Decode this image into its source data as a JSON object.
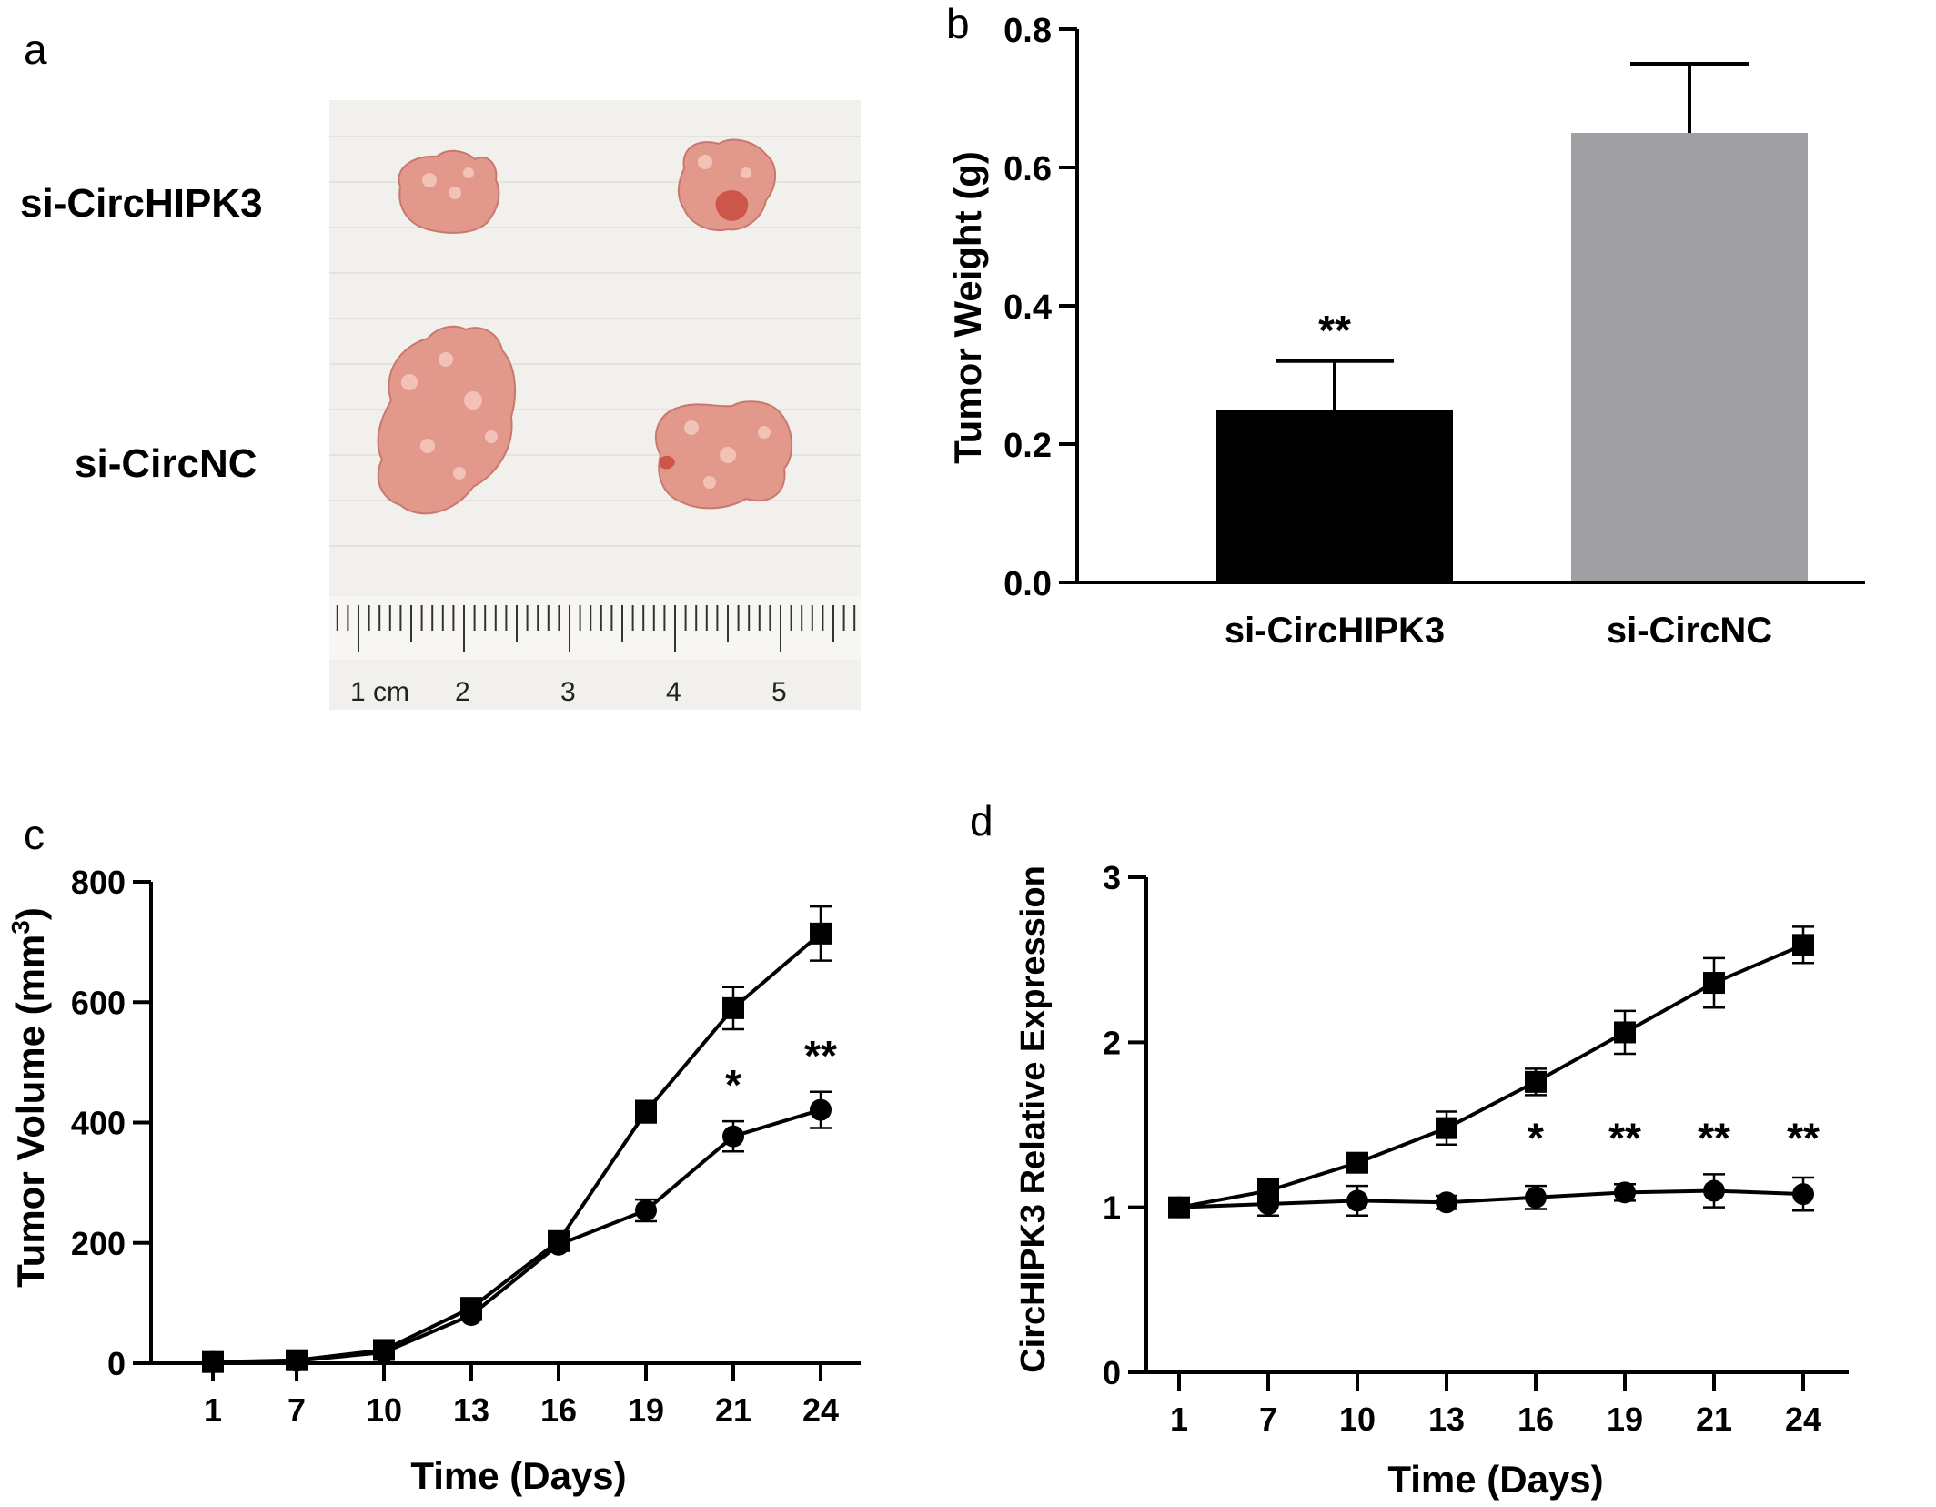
{
  "panel_labels": {
    "a": "a",
    "b": "b",
    "c": "c",
    "d": "d"
  },
  "photo": {
    "label_top": "si-CircHIPK3",
    "label_bottom": "si-CircNC",
    "ruler_labels": [
      "1 cm",
      "2",
      "3",
      "4",
      "5"
    ],
    "colors": {
      "background": "#f1f0ec",
      "tissue": "#e3988c",
      "tissue_highlight": "#f6c9bd",
      "tissue_dark": "#c84a3c"
    }
  },
  "chart_data": [
    {
      "panel": "b",
      "type": "bar",
      "categories": [
        "si-CircHIPK3",
        "si-CircNC"
      ],
      "values": [
        0.25,
        0.65
      ],
      "errors": [
        0.07,
        0.1
      ],
      "colors": [
        "#000000",
        "#a0a0a4"
      ],
      "annotations": [
        "**",
        ""
      ],
      "ylabel": "Tumor Weight (g)",
      "ylim": [
        0,
        0.8
      ],
      "yticks": [
        "0.0",
        "0.2",
        "0.4",
        "0.6",
        "0.8"
      ]
    },
    {
      "panel": "c",
      "type": "line",
      "xlabel": "Time (Days)",
      "ylabel": "Tumor Volume (mm³)",
      "ylabel_main": "Tumor Volume (mm",
      "ylabel_sup": "3",
      "ylabel_end": ")",
      "x": [
        1,
        7,
        10,
        13,
        16,
        19,
        21,
        24
      ],
      "xticks": [
        "1",
        "7",
        "10",
        "13",
        "16",
        "19",
        "21",
        "24"
      ],
      "ylim": [
        0,
        800
      ],
      "yticks": [
        "0",
        "200",
        "400",
        "600",
        "800"
      ],
      "series": [
        {
          "marker": "square",
          "values": [
            2,
            5,
            22,
            92,
            203,
            418,
            590,
            714
          ],
          "errors": [
            4,
            5,
            6,
            8,
            10,
            18,
            35,
            45
          ]
        },
        {
          "marker": "circle",
          "values": [
            2,
            4,
            18,
            80,
            197,
            254,
            377,
            421
          ],
          "errors": [
            4,
            5,
            6,
            8,
            10,
            18,
            25,
            30
          ]
        }
      ],
      "annotations": [
        {
          "x": 21,
          "text": "*"
        },
        {
          "x": 24,
          "text": "**"
        }
      ]
    },
    {
      "panel": "d",
      "type": "line",
      "xlabel": "Time (Days)",
      "ylabel": "CircHIPK3 Relative Expression",
      "x": [
        1,
        7,
        10,
        13,
        16,
        19,
        21,
        24
      ],
      "xticks": [
        "1",
        "7",
        "10",
        "13",
        "16",
        "19",
        "21",
        "24"
      ],
      "ylim": [
        0,
        3
      ],
      "yticks": [
        "0",
        "1",
        "2",
        "3"
      ],
      "series": [
        {
          "marker": "square",
          "values": [
            1.0,
            1.1,
            1.27,
            1.48,
            1.76,
            2.06,
            2.36,
            2.59
          ],
          "errors": [
            0.04,
            0.07,
            0.04,
            0.1,
            0.08,
            0.13,
            0.15,
            0.11
          ]
        },
        {
          "marker": "circle",
          "values": [
            1.0,
            1.02,
            1.04,
            1.03,
            1.06,
            1.09,
            1.1,
            1.08
          ],
          "errors": [
            0.04,
            0.07,
            0.09,
            0.04,
            0.07,
            0.05,
            0.1,
            0.1
          ]
        }
      ],
      "annotations": [
        {
          "x": 16,
          "text": "*"
        },
        {
          "x": 19,
          "text": "**"
        },
        {
          "x": 21,
          "text": "**"
        },
        {
          "x": 24,
          "text": "**"
        }
      ]
    }
  ]
}
